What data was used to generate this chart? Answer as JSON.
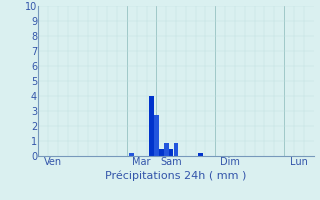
{
  "xlabel": "Précipitations 24h ( mm )",
  "background_color": "#daf0f0",
  "grid_color_minor": "#c0dede",
  "grid_color_major": "#a0c8c8",
  "ylim": [
    0,
    10
  ],
  "yticks": [
    0,
    1,
    2,
    3,
    4,
    5,
    6,
    7,
    8,
    9,
    10
  ],
  "xlim": [
    0,
    28
  ],
  "x_day_labels": [
    {
      "label": "Ven",
      "x": 1.5
    },
    {
      "label": "Mar",
      "x": 10.5
    },
    {
      "label": "Sam",
      "x": 13.5
    },
    {
      "label": "Dim",
      "x": 19.5
    },
    {
      "label": "Lun",
      "x": 26.5
    }
  ],
  "major_vline_positions": [
    0,
    9,
    12,
    18,
    25,
    28
  ],
  "bars": [
    {
      "x": 9.5,
      "height": 0.2,
      "color": "#2255dd"
    },
    {
      "x": 11.5,
      "height": 4.0,
      "color": "#0033cc"
    },
    {
      "x": 12.0,
      "height": 2.75,
      "color": "#2255dd"
    },
    {
      "x": 12.5,
      "height": 0.5,
      "color": "#0033cc"
    },
    {
      "x": 13.0,
      "height": 0.85,
      "color": "#2255dd"
    },
    {
      "x": 13.5,
      "height": 0.5,
      "color": "#0033cc"
    },
    {
      "x": 14.0,
      "height": 0.85,
      "color": "#2255dd"
    },
    {
      "x": 16.5,
      "height": 0.2,
      "color": "#0033cc"
    }
  ],
  "bar_width": 0.48,
  "xlabel_fontsize": 8,
  "ytick_fontsize": 7,
  "xtick_fontsize": 7
}
